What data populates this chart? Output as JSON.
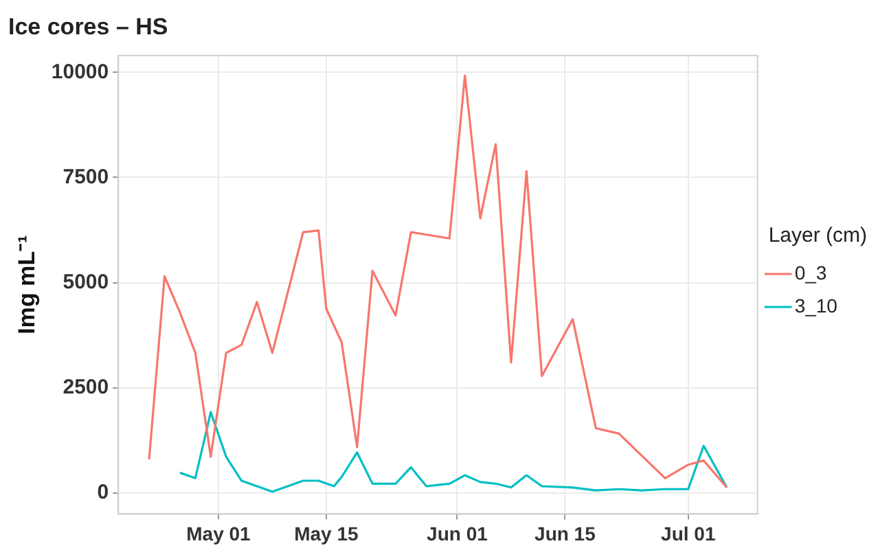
{
  "chart_data": {
    "type": "line",
    "title": "Ice cores – HS",
    "ylabel": "Img mL⁻¹",
    "legend_title": "Layer (cm)",
    "xlim": [
      "--04-18",
      "--07-10"
    ],
    "xticks": [
      {
        "value": "--05-01",
        "label": "May 01"
      },
      {
        "value": "--05-15",
        "label": "May 15"
      },
      {
        "value": "--06-01",
        "label": "Jun 01"
      },
      {
        "value": "--06-15",
        "label": "Jun 15"
      },
      {
        "value": "--07-01",
        "label": "Jul 01"
      }
    ],
    "ylim": [
      -500,
      10400
    ],
    "yticks": [
      0,
      2500,
      5000,
      7500,
      10000
    ],
    "grid": true,
    "legend": "right",
    "marker": "none",
    "line_style": "solid",
    "series": [
      {
        "name": "0_3",
        "color": "#f8766d",
        "x": [
          "--04-22",
          "--04-24",
          "--04-26",
          "--04-28",
          "--04-30",
          "--05-02",
          "--05-04",
          "--05-06",
          "--05-08",
          "--05-12",
          "--05-14",
          "--05-15",
          "--05-17",
          "--05-19",
          "--05-21",
          "--05-24",
          "--05-26",
          "--05-31",
          "--06-02",
          "--06-04",
          "--06-06",
          "--06-08",
          "--06-10",
          "--06-12",
          "--06-16",
          "--06-19",
          "--06-22",
          "--06-28",
          "--07-01",
          "--07-03",
          "--07-06"
        ],
        "values": [
          800,
          5150,
          4290,
          3330,
          860,
          3330,
          3520,
          4540,
          3330,
          6200,
          6240,
          4380,
          3580,
          1090,
          5280,
          4220,
          6200,
          6050,
          9920,
          6530,
          8290,
          3100,
          7650,
          2780,
          4130,
          1540,
          1410,
          350,
          670,
          770,
          130
        ]
      },
      {
        "name": "3_10",
        "color": "#00bfc4",
        "x": [
          "--04-26",
          "--04-28",
          "--04-30",
          "--05-02",
          "--05-04",
          "--05-06",
          "--05-08",
          "--05-12",
          "--05-14",
          "--05-16",
          "--05-17",
          "--05-19",
          "--05-21",
          "--05-24",
          "--05-26",
          "--05-28",
          "--05-31",
          "--06-02",
          "--06-04",
          "--06-06",
          "--06-08",
          "--06-10",
          "--06-12",
          "--06-16",
          "--06-19",
          "--06-22",
          "--06-25",
          "--06-28",
          "--07-01",
          "--07-03",
          "--07-06"
        ],
        "values": [
          480,
          350,
          1920,
          860,
          290,
          160,
          30,
          290,
          290,
          160,
          380,
          960,
          220,
          220,
          610,
          160,
          220,
          420,
          260,
          220,
          130,
          420,
          160,
          130,
          60,
          90,
          60,
          90,
          90,
          1120,
          130
        ]
      }
    ]
  }
}
